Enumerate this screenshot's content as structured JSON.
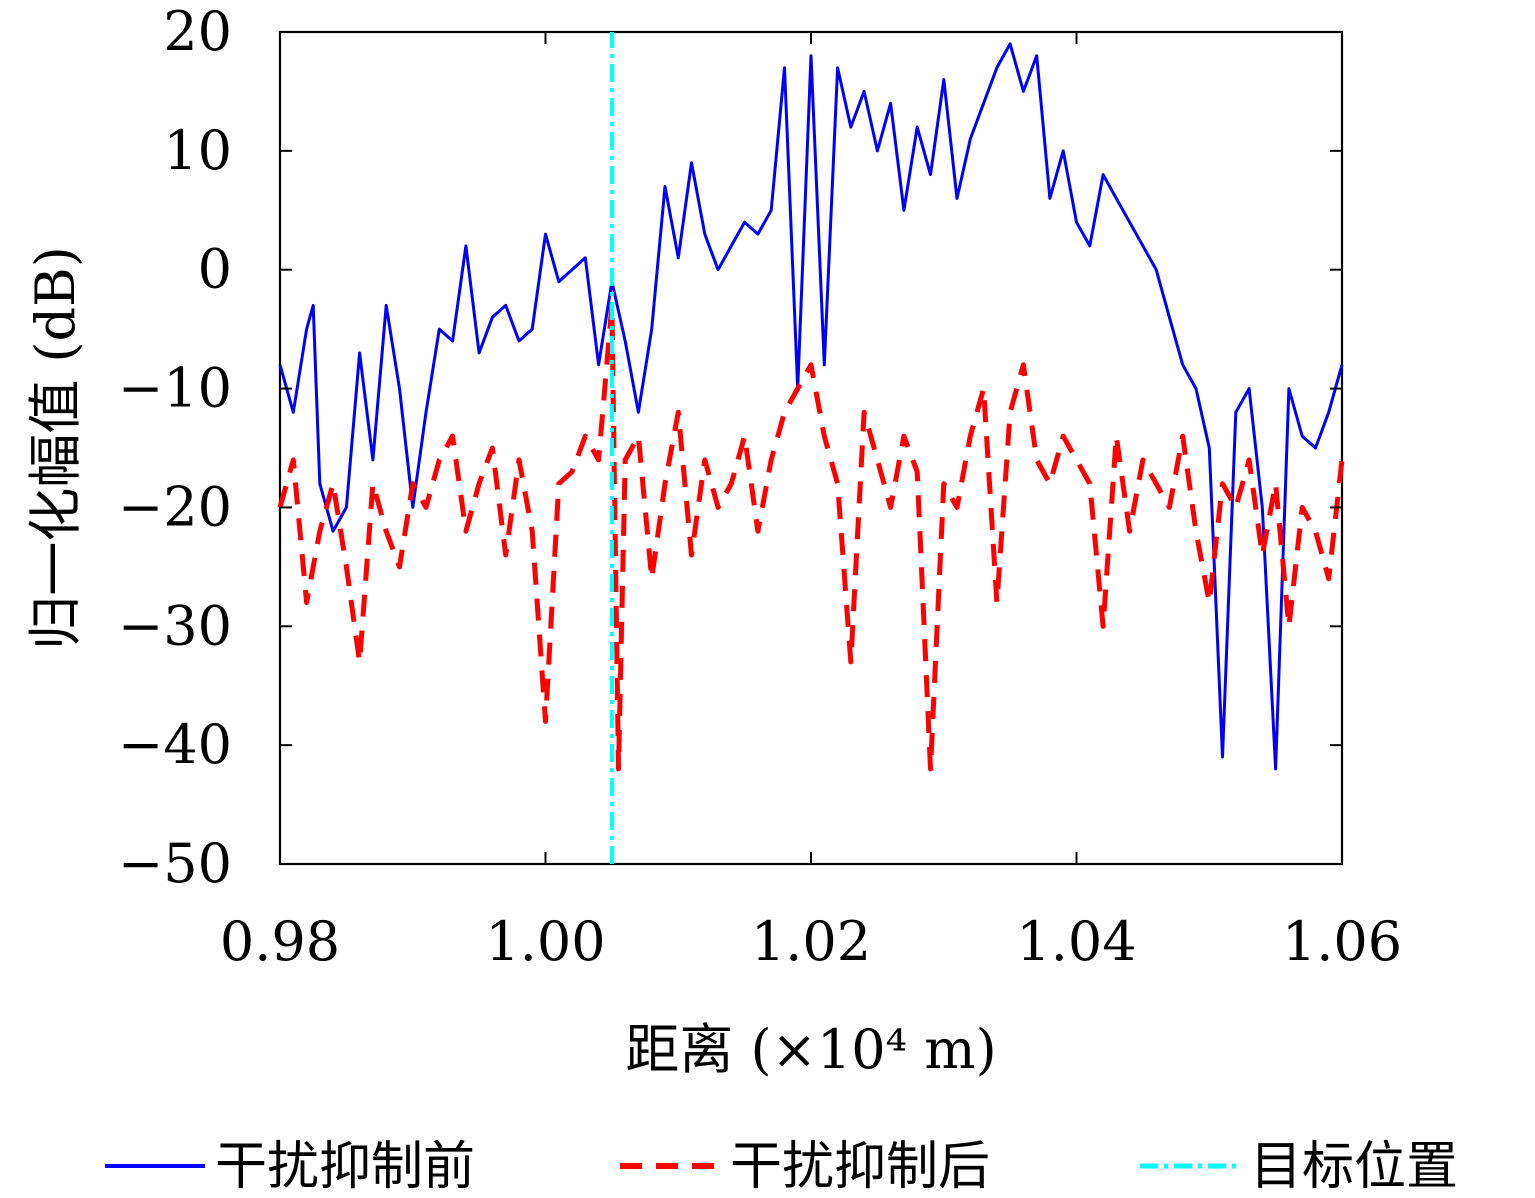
{
  "chart_data": {
    "type": "line",
    "xlabel": "距离 (×10⁴ m)",
    "ylabel": "归一化幅值 (dB)",
    "xlim": [
      0.98,
      1.06
    ],
    "ylim": [
      -50,
      20
    ],
    "xticks": [
      "0.98",
      "1.00",
      "1.02",
      "1.04",
      "1.06"
    ],
    "yticks": [
      "20",
      "10",
      "0",
      "−10",
      "−20",
      "−30",
      "−40",
      "−50"
    ],
    "grid": false,
    "legend_position": "bottom",
    "series": [
      {
        "name": "干扰抑制前",
        "color": "#0000ff",
        "style": "solid",
        "x": [
          0.98,
          0.981,
          0.982,
          0.9825,
          0.983,
          0.984,
          0.985,
          0.986,
          0.987,
          0.988,
          0.989,
          0.99,
          0.991,
          0.992,
          0.993,
          0.994,
          0.995,
          0.996,
          0.997,
          0.998,
          0.999,
          1.0,
          1.001,
          1.002,
          1.003,
          1.004,
          1.005,
          1.006,
          1.007,
          1.008,
          1.009,
          1.01,
          1.011,
          1.012,
          1.013,
          1.014,
          1.015,
          1.016,
          1.017,
          1.018,
          1.019,
          1.02,
          1.021,
          1.022,
          1.023,
          1.024,
          1.025,
          1.026,
          1.027,
          1.028,
          1.029,
          1.03,
          1.031,
          1.032,
          1.033,
          1.034,
          1.035,
          1.036,
          1.037,
          1.038,
          1.039,
          1.04,
          1.041,
          1.042,
          1.043,
          1.044,
          1.045,
          1.046,
          1.047,
          1.048,
          1.049,
          1.05,
          1.051,
          1.052,
          1.053,
          1.054,
          1.055,
          1.056,
          1.057,
          1.058,
          1.059,
          1.06
        ],
        "y": [
          -8,
          -12,
          -5,
          -3,
          -18,
          -22,
          -20,
          -7,
          -16,
          -3,
          -10,
          -20,
          -12,
          -5,
          -6,
          2,
          -7,
          -4,
          -3,
          -6,
          -5,
          3,
          -1,
          0,
          1,
          -8,
          -1,
          -6,
          -12,
          -5,
          7,
          1,
          9,
          3,
          0,
          2,
          4,
          3,
          5,
          17,
          -10,
          18,
          -8,
          17,
          12,
          15,
          10,
          14,
          5,
          12,
          8,
          16,
          6,
          11,
          14,
          17,
          19,
          15,
          18,
          6,
          10,
          4,
          2,
          8,
          6,
          4,
          2,
          0,
          -4,
          -8,
          -10,
          -15,
          -41,
          -12,
          -10,
          -20,
          -42,
          -10,
          -14,
          -15,
          -12,
          -8
        ]
      },
      {
        "name": "干扰抑制后",
        "color": "#ff0000",
        "style": "dashed",
        "x": [
          0.98,
          0.981,
          0.982,
          0.983,
          0.984,
          0.985,
          0.986,
          0.987,
          0.988,
          0.989,
          0.99,
          0.991,
          0.992,
          0.993,
          0.994,
          0.995,
          0.996,
          0.997,
          0.998,
          0.999,
          1.0,
          1.001,
          1.002,
          1.003,
          1.004,
          1.005,
          1.0055,
          1.006,
          1.007,
          1.008,
          1.009,
          1.01,
          1.011,
          1.012,
          1.013,
          1.014,
          1.015,
          1.016,
          1.017,
          1.018,
          1.019,
          1.02,
          1.021,
          1.022,
          1.023,
          1.024,
          1.025,
          1.026,
          1.027,
          1.028,
          1.029,
          1.03,
          1.031,
          1.032,
          1.033,
          1.034,
          1.035,
          1.036,
          1.037,
          1.038,
          1.039,
          1.04,
          1.041,
          1.042,
          1.043,
          1.044,
          1.045,
          1.046,
          1.047,
          1.048,
          1.049,
          1.05,
          1.051,
          1.052,
          1.053,
          1.054,
          1.055,
          1.056,
          1.057,
          1.058,
          1.059,
          1.06
        ],
        "y": [
          -20,
          -16,
          -28,
          -22,
          -18,
          -25,
          -33,
          -18,
          -22,
          -25,
          -18,
          -20,
          -16,
          -14,
          -22,
          -18,
          -15,
          -24,
          -16,
          -22,
          -38,
          -18,
          -17,
          -14,
          -16,
          -3,
          -42,
          -16,
          -14,
          -26,
          -18,
          -12,
          -24,
          -16,
          -20,
          -18,
          -14,
          -22,
          -16,
          -12,
          -10,
          -8,
          -14,
          -18,
          -33,
          -12,
          -16,
          -20,
          -14,
          -17,
          -42,
          -18,
          -20,
          -14,
          -10,
          -28,
          -12,
          -8,
          -16,
          -18,
          -14,
          -16,
          -18,
          -30,
          -14,
          -22,
          -16,
          -18,
          -20,
          -14,
          -22,
          -28,
          -18,
          -20,
          -16,
          -24,
          -18,
          -30,
          -20,
          -22,
          -26,
          -16
        ]
      },
      {
        "name": "目标位置",
        "color": "#00ffff",
        "style": "dash-dot",
        "x": [
          1.005,
          1.005
        ],
        "y": [
          -50,
          20
        ]
      }
    ]
  }
}
